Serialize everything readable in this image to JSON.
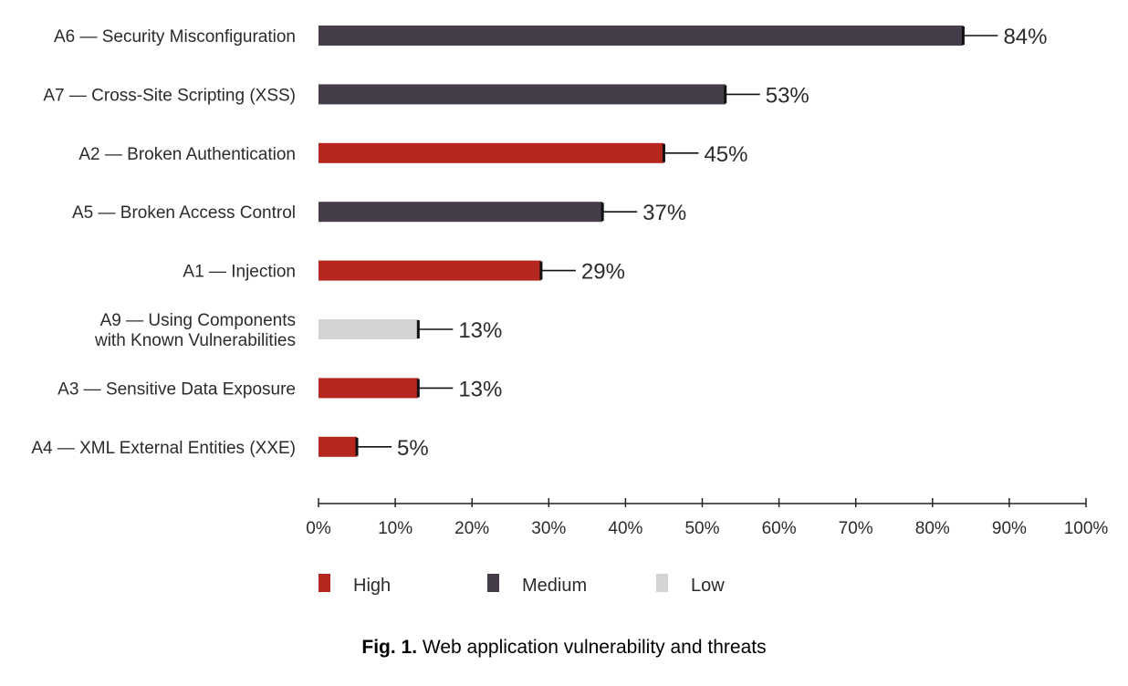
{
  "chart_data": {
    "type": "bar",
    "orientation": "horizontal",
    "categories": [
      [
        "A6 — Security Misconfiguration"
      ],
      [
        "A7 — Cross-Site Scripting (XSS)"
      ],
      [
        "A2 — Broken Authentication"
      ],
      [
        "A5 — Broken Access Control"
      ],
      [
        "A1 — Injection"
      ],
      [
        "A9 — Using Components",
        "with Known Vulnerabilities"
      ],
      [
        "A3 — Sensitive Data Exposure"
      ],
      [
        "A4 — XML External Entities (XXE)"
      ]
    ],
    "values": [
      84,
      53,
      45,
      37,
      29,
      13,
      13,
      5
    ],
    "value_labels": [
      "84%",
      "53%",
      "45%",
      "37%",
      "29%",
      "13%",
      "13%",
      "5%"
    ],
    "severity": [
      "Medium",
      "Medium",
      "High",
      "Medium",
      "High",
      "Low",
      "High",
      "High"
    ],
    "xlim": [
      0,
      100
    ],
    "x_ticks": [
      0,
      10,
      20,
      30,
      40,
      50,
      60,
      70,
      80,
      90,
      100
    ],
    "x_tick_labels": [
      "0%",
      "10%",
      "20%",
      "30%",
      "40%",
      "50%",
      "60%",
      "70%",
      "80%",
      "90%",
      "100%"
    ],
    "grid": false,
    "legend": {
      "placement": "bottom",
      "entries": [
        {
          "name": "High",
          "color": "#b5261e"
        },
        {
          "name": "Medium",
          "color": "#463d4b"
        },
        {
          "name": "Low",
          "color": "#d3d3d3"
        }
      ]
    }
  },
  "caption": {
    "prefix": "Fig. 1.",
    "text": " Web application vulnerability and threats"
  }
}
